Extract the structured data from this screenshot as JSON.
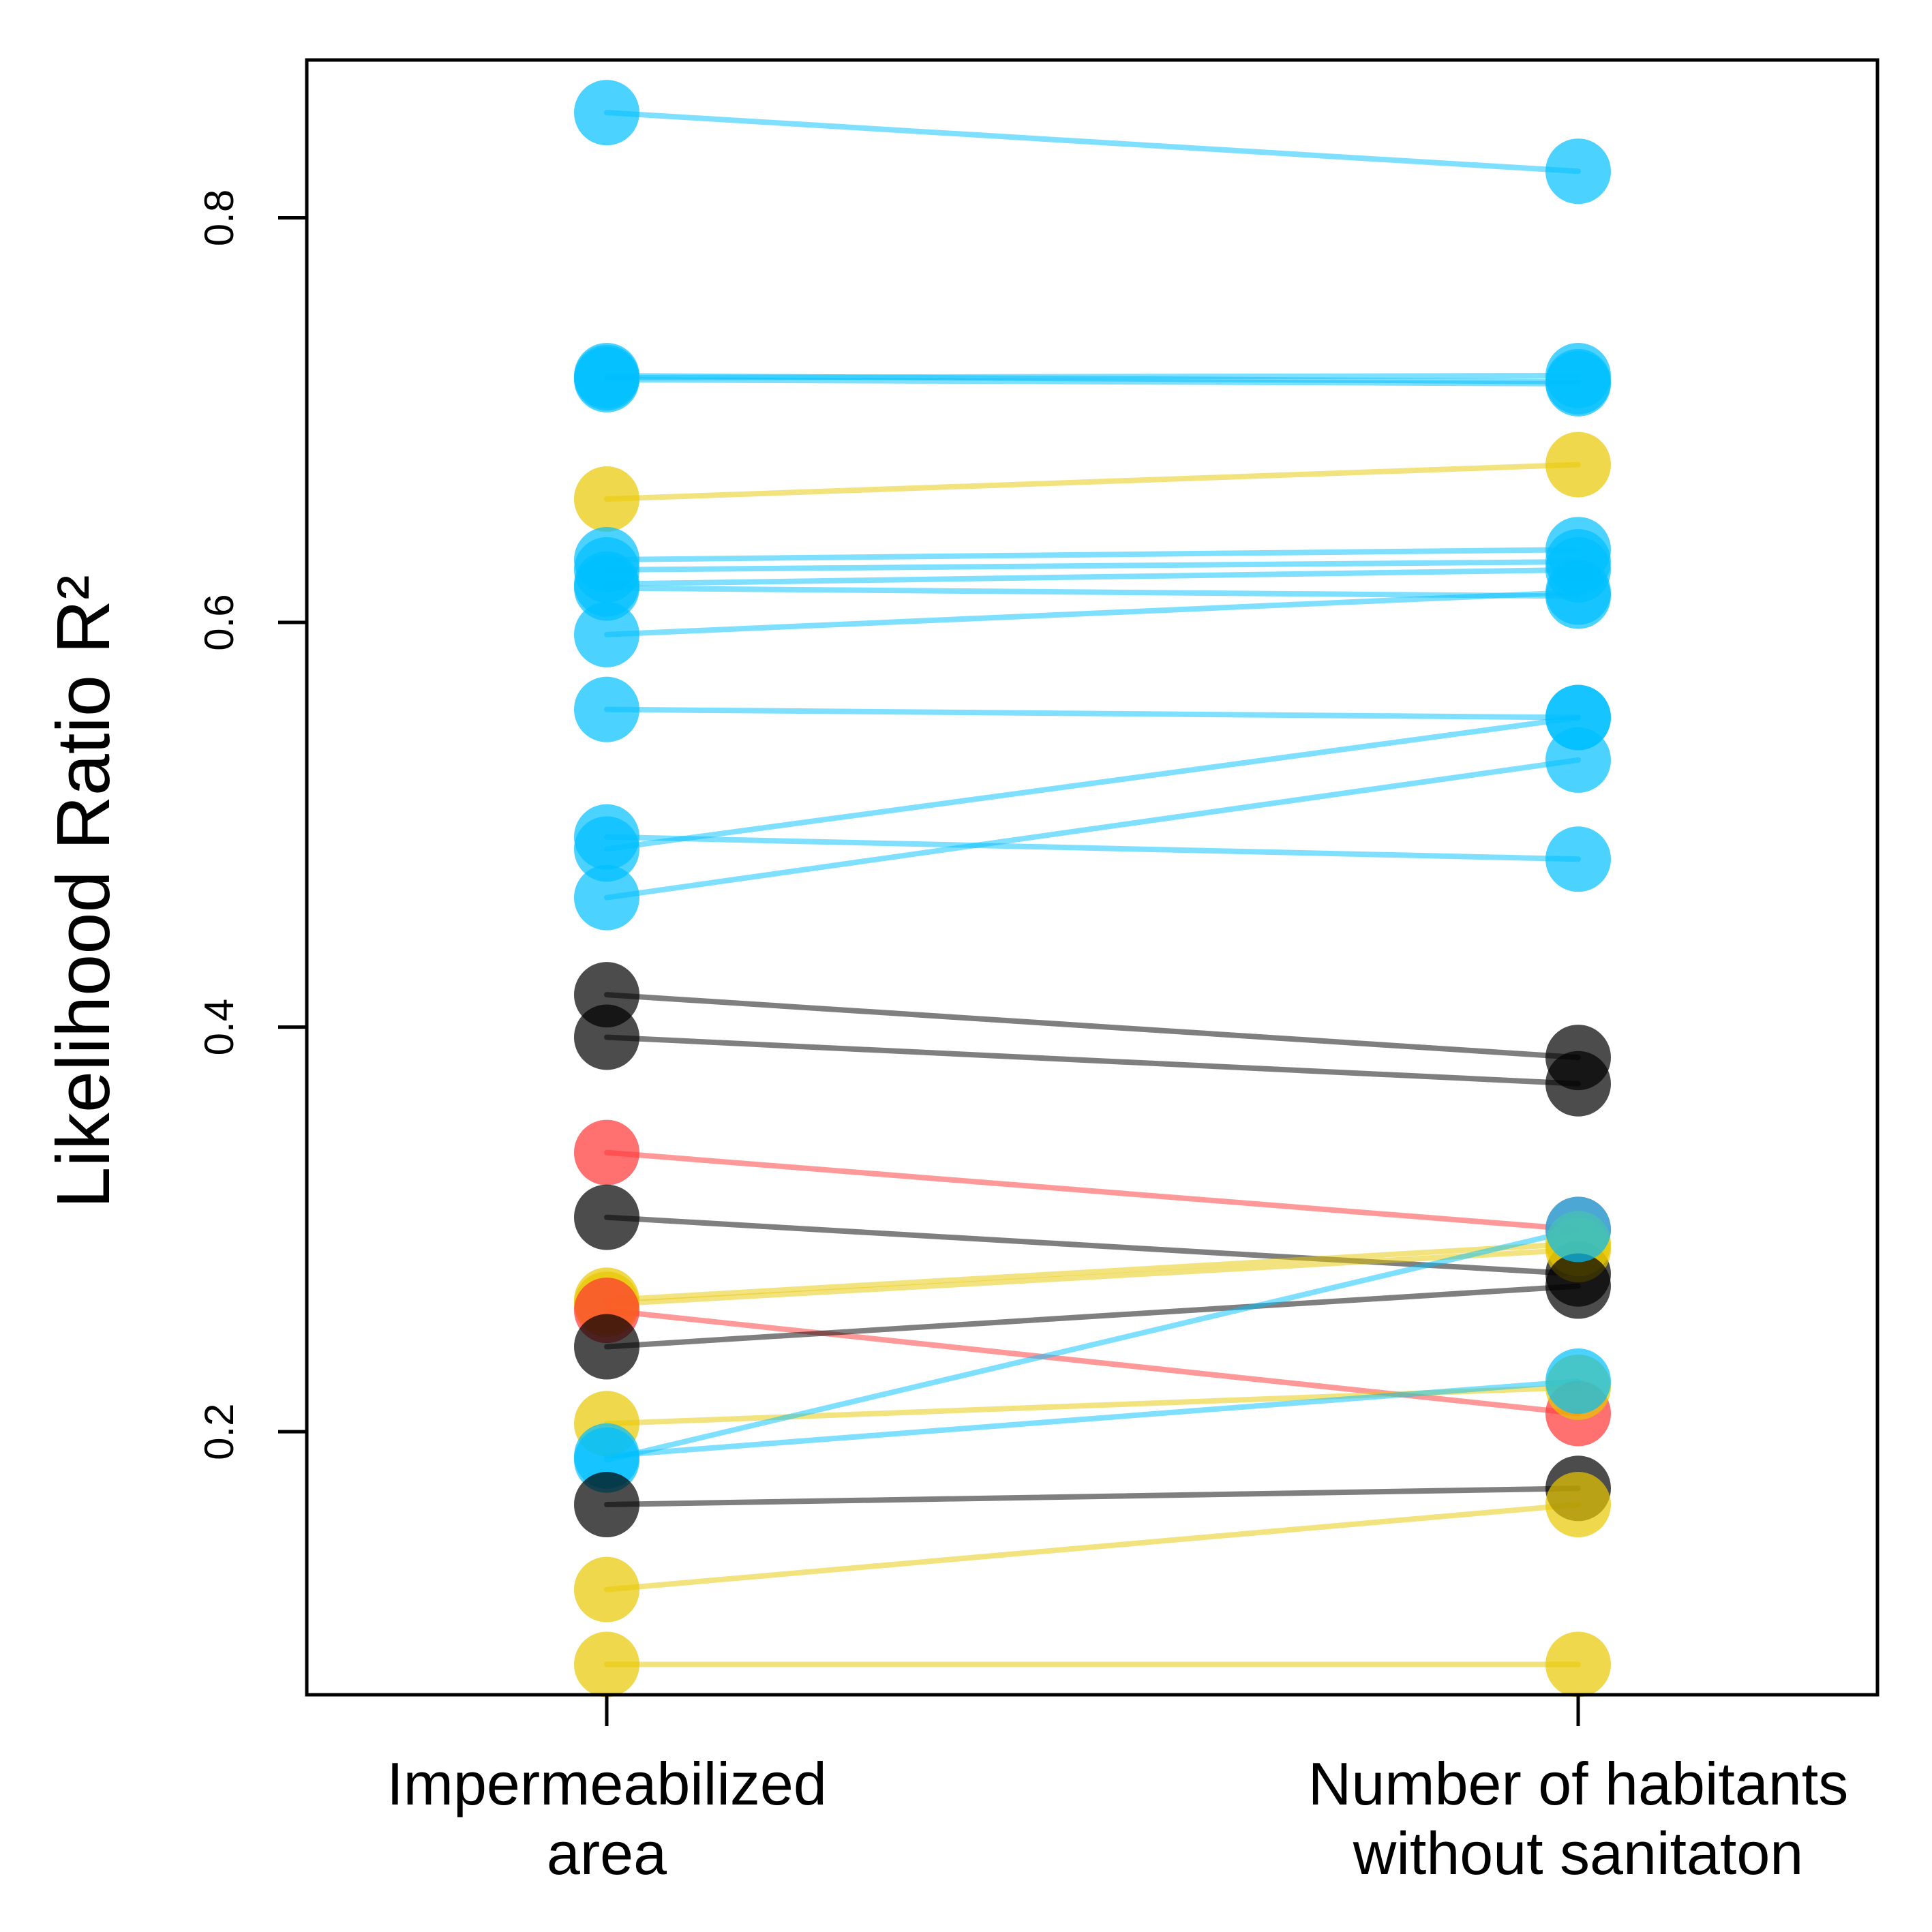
{
  "chart_data": {
    "type": "slope",
    "title": "",
    "xlabel": "",
    "ylabel": "Likelihood Ratio R²",
    "categories": [
      {
        "lines": [
          "Impermeabilized",
          "area"
        ]
      },
      {
        "lines": [
          "Number of habitants",
          "without sanitaton"
        ]
      }
    ],
    "yticks": [
      0.2,
      0.4,
      0.6,
      0.8
    ],
    "ytick_labels": [
      "0.2",
      "0.4",
      "0.6",
      "0.8"
    ],
    "ylim": [
      0.07,
      0.878
    ],
    "grid": false,
    "legend": "none",
    "colors": {
      "blue": "#00BFFF",
      "yellow": "#E8C800",
      "black": "#000000",
      "red": "#FF3333"
    },
    "pairs": [
      {
        "group": "blue",
        "values": [
          0.852,
          0.823
        ]
      },
      {
        "group": "blue",
        "values": [
          0.722,
          0.719
        ]
      },
      {
        "group": "blue",
        "values": [
          0.721,
          0.722
        ]
      },
      {
        "group": "blue",
        "values": [
          0.72,
          0.718
        ]
      },
      {
        "group": "yellow",
        "values": [
          0.661,
          0.678
        ]
      },
      {
        "group": "blue",
        "values": [
          0.631,
          0.636
        ]
      },
      {
        "group": "blue",
        "values": [
          0.626,
          0.63
        ]
      },
      {
        "group": "blue",
        "values": [
          0.619,
          0.626
        ]
      },
      {
        "group": "blue",
        "values": [
          0.617,
          0.613
        ]
      },
      {
        "group": "blue",
        "values": [
          0.594,
          0.615
        ]
      },
      {
        "group": "blue",
        "values": [
          0.557,
          0.553
        ]
      },
      {
        "group": "blue",
        "values": [
          0.494,
          0.483
        ]
      },
      {
        "group": "blue",
        "values": [
          0.488,
          0.553
        ]
      },
      {
        "group": "blue",
        "values": [
          0.464,
          0.532
        ]
      },
      {
        "group": "black",
        "values": [
          0.416,
          0.385
        ]
      },
      {
        "group": "black",
        "values": [
          0.395,
          0.372
        ]
      },
      {
        "group": "red",
        "values": [
          0.338,
          0.3
        ]
      },
      {
        "group": "black",
        "values": [
          0.306,
          0.278
        ]
      },
      {
        "group": "yellow",
        "values": [
          0.265,
          0.293
        ]
      },
      {
        "group": "yellow",
        "values": [
          0.263,
          0.29
        ]
      },
      {
        "group": "red",
        "values": [
          0.26,
          0.209
        ]
      },
      {
        "group": "black",
        "values": [
          0.242,
          0.272
        ]
      },
      {
        "group": "yellow",
        "values": [
          0.204,
          0.222
        ]
      },
      {
        "group": "blue",
        "values": [
          0.188,
          0.225
        ]
      },
      {
        "group": "blue",
        "values": [
          0.186,
          0.3
        ]
      },
      {
        "group": "black",
        "values": [
          0.164,
          0.172
        ]
      },
      {
        "group": "yellow",
        "values": [
          0.122,
          0.164
        ]
      },
      {
        "group": "yellow",
        "values": [
          0.085,
          0.085
        ]
      }
    ]
  }
}
